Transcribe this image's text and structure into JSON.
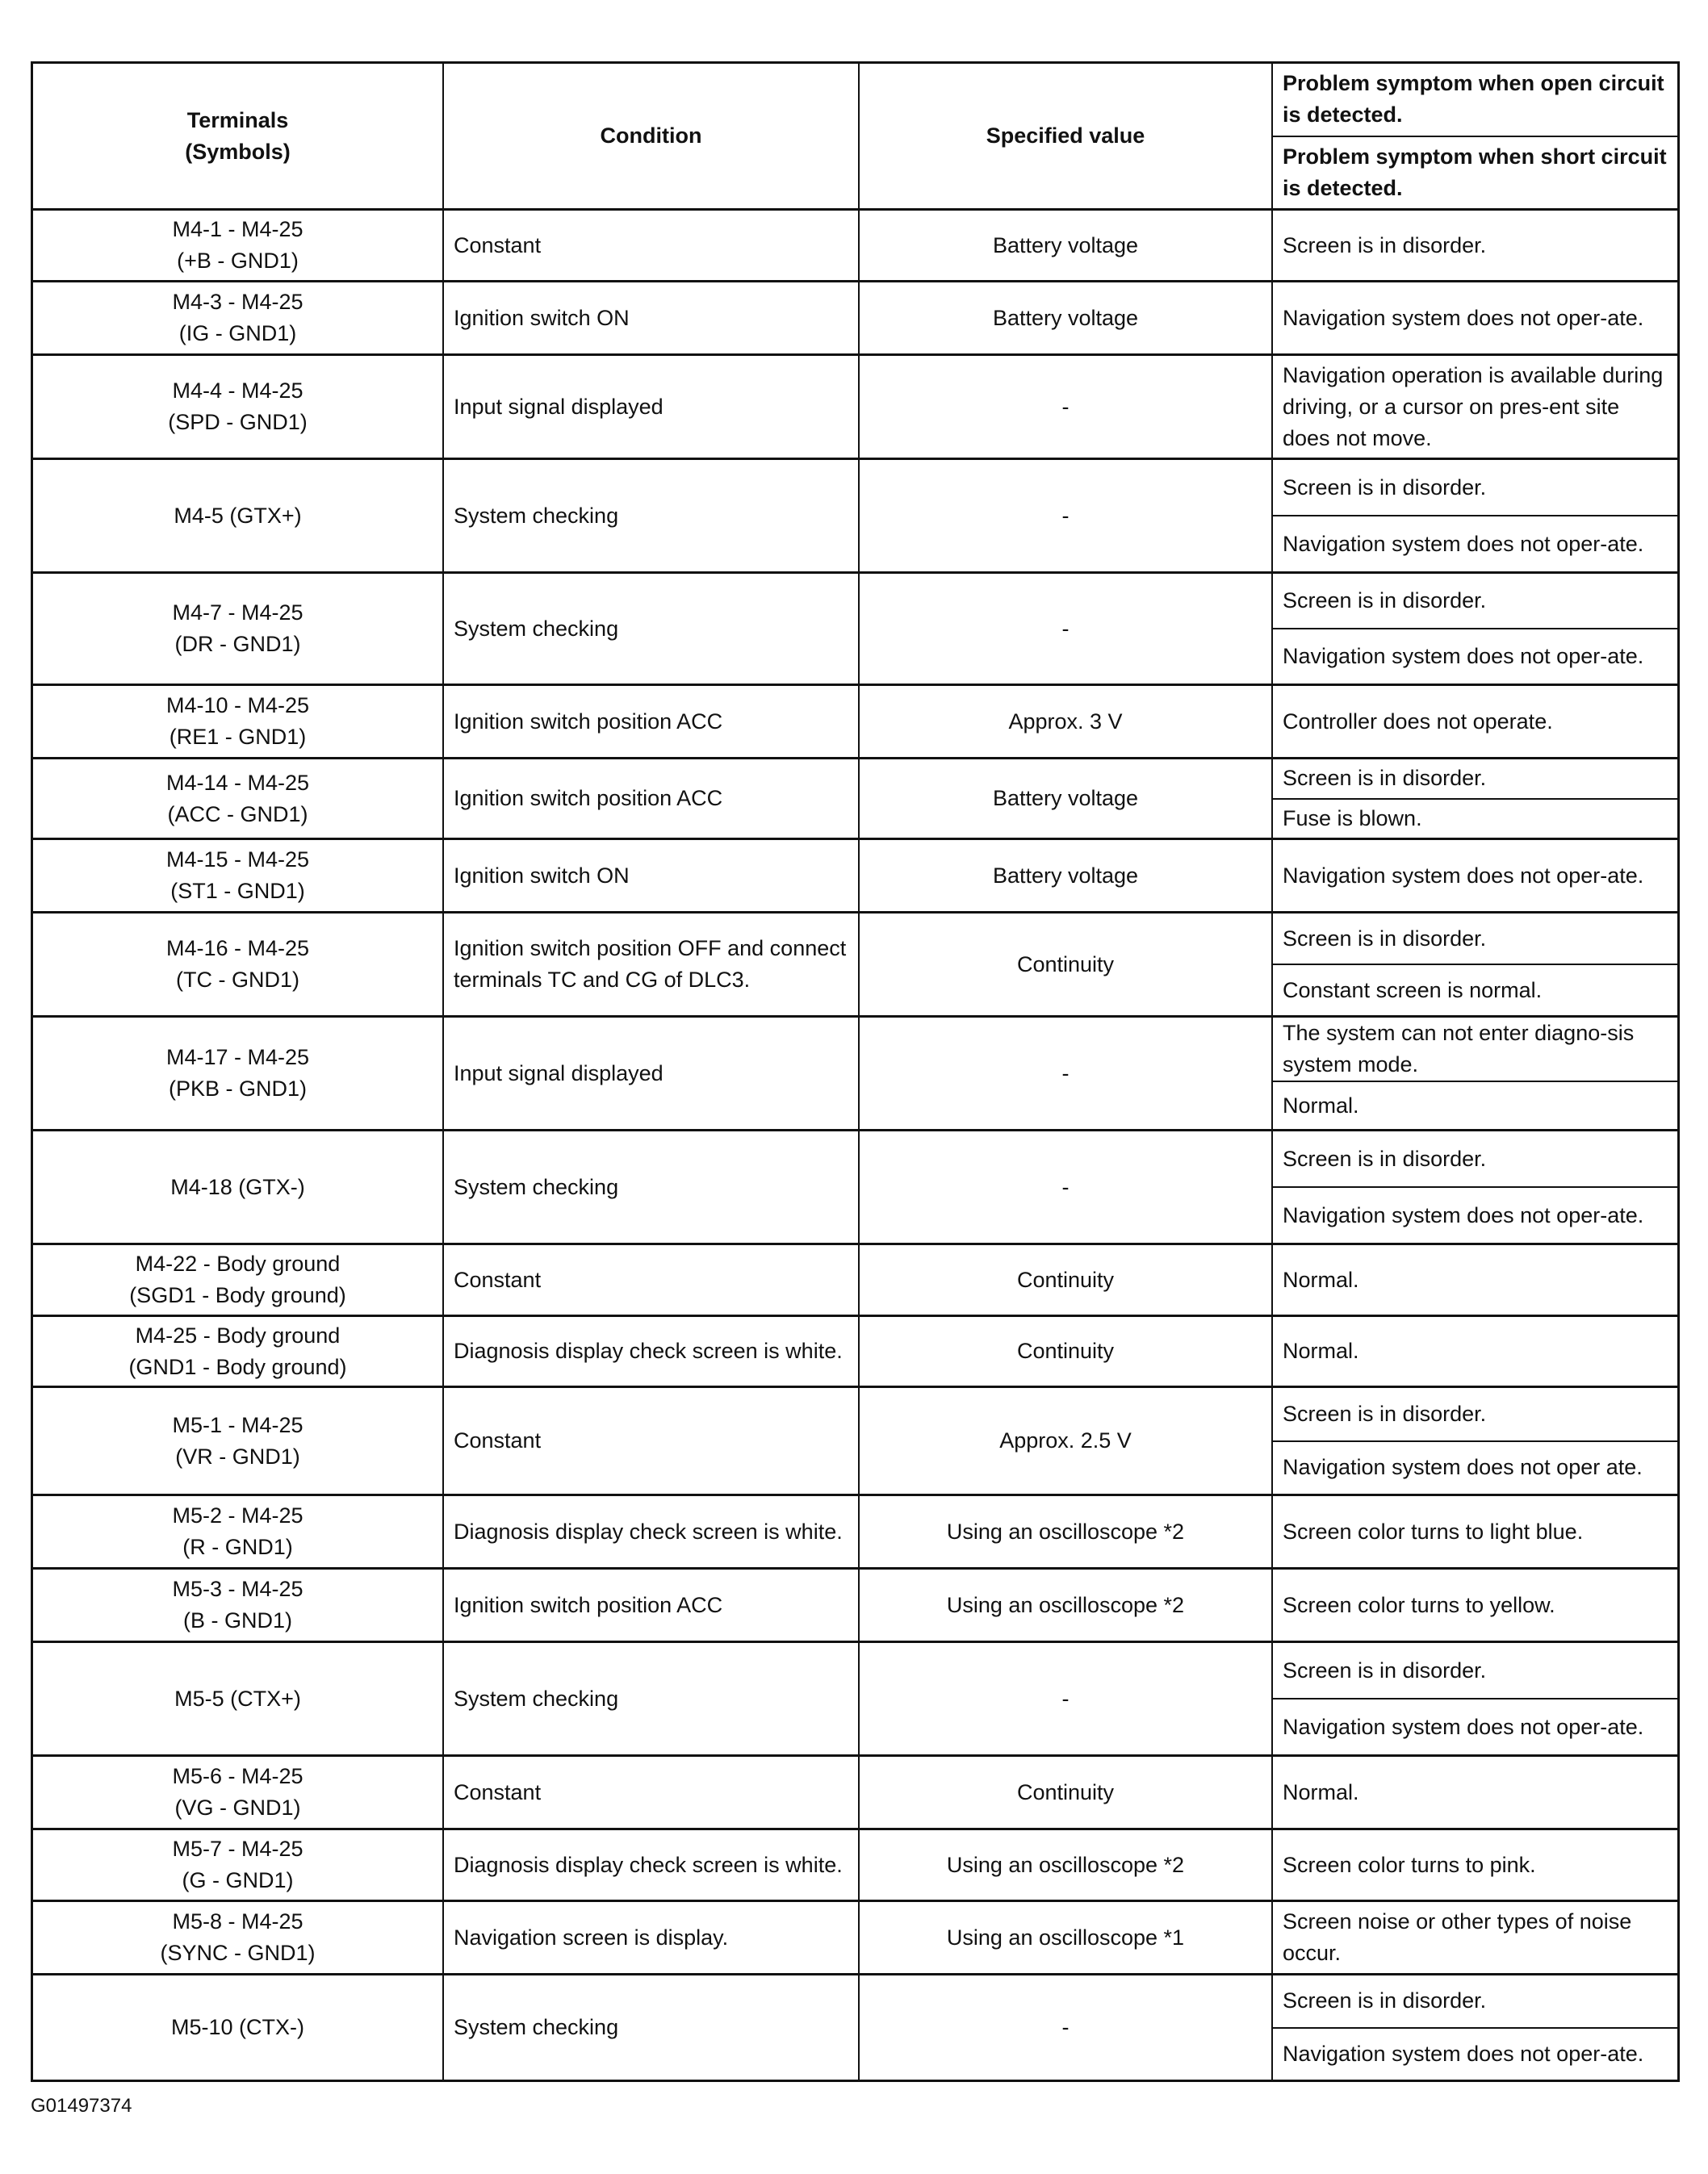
{
  "header": {
    "terminals": "Terminals\n(Symbols)",
    "condition": "Condition",
    "specified_value": "Specified value",
    "symptom_open": "Problem symptom when open circuit is detected.",
    "symptom_short": "Problem symptom when short circuit is detected."
  },
  "rows": [
    {
      "terminals": "M4-1 - M4-25\n(+B - GND1)",
      "condition": "Constant",
      "value": "Battery voltage",
      "symptoms": [
        "Screen is in disorder."
      ]
    },
    {
      "terminals": "M4-3 - M4-25\n(IG - GND1)",
      "condition": "Ignition switch ON",
      "value": "Battery voltage",
      "symptoms": [
        "Navigation system does not oper-ate."
      ]
    },
    {
      "terminals": "M4-4 - M4-25\n(SPD - GND1)",
      "condition": "Input signal displayed",
      "value": "-",
      "symptoms": [
        "Navigation operation is available during driving, or a cursor on pres-ent site does not move."
      ]
    },
    {
      "terminals": "M4-5 (GTX+)",
      "condition": "System checking",
      "value": "-",
      "symptoms": [
        "Screen is in disorder.",
        "Navigation system does not oper-ate."
      ]
    },
    {
      "terminals": "M4-7 - M4-25\n(DR - GND1)",
      "condition": "System checking",
      "value": "-",
      "symptoms": [
        "Screen is in disorder.",
        "Navigation system does not oper-ate."
      ]
    },
    {
      "terminals": "M4-10 - M4-25\n(RE1 - GND1)",
      "condition": "Ignition switch position ACC",
      "value": "Approx. 3 V",
      "symptoms": [
        "Controller does not operate."
      ]
    },
    {
      "terminals": "M4-14 - M4-25\n(ACC - GND1)",
      "condition": "Ignition switch position ACC",
      "value": "Battery voltage",
      "symptoms": [
        "Screen is in disorder.",
        "Fuse is blown."
      ]
    },
    {
      "terminals": "M4-15 - M4-25\n(ST1 - GND1)",
      "condition": "Ignition switch ON",
      "value": "Battery voltage",
      "symptoms": [
        "Navigation system does not oper-ate."
      ]
    },
    {
      "terminals": "M4-16 - M4-25\n(TC - GND1)",
      "condition": "Ignition switch position OFF and connect terminals TC and CG of DLC3.",
      "value": "Continuity",
      "symptoms": [
        "Screen is in disorder.",
        "Constant screen is normal."
      ]
    },
    {
      "terminals": "M4-17 - M4-25\n(PKB - GND1)",
      "condition": "Input signal displayed",
      "value": "-",
      "symptoms": [
        "The system can not enter diagno-sis system mode.",
        "Normal."
      ]
    },
    {
      "terminals": "M4-18 (GTX-)",
      "condition": "System checking",
      "value": "-",
      "symptoms": [
        "Screen is in disorder.",
        "Navigation system does not oper-ate."
      ]
    },
    {
      "terminals": "M4-22 - Body ground\n(SGD1 - Body ground)",
      "condition": "Constant",
      "value": "Continuity",
      "symptoms": [
        "Normal."
      ]
    },
    {
      "terminals": "M4-25 - Body ground\n(GND1 - Body ground)",
      "condition": "Diagnosis display check screen is white.",
      "value": "Continuity",
      "symptoms": [
        "Normal."
      ]
    },
    {
      "terminals": "M5-1 - M4-25\n(VR - GND1)",
      "condition": "Constant",
      "value": "Approx. 2.5 V",
      "symptoms": [
        "Screen is in disorder.",
        "Navigation system does not oper ate."
      ]
    },
    {
      "terminals": "M5-2 - M4-25\n(R - GND1)",
      "condition": "Diagnosis display check screen is white.",
      "value": "Using an oscilloscope *2",
      "symptoms": [
        "Screen color turns to light blue."
      ]
    },
    {
      "terminals": "M5-3 - M4-25\n(B - GND1)",
      "condition": "Ignition switch position ACC",
      "value": "Using an oscilloscope *2",
      "symptoms": [
        "Screen color turns to yellow."
      ]
    },
    {
      "terminals": "M5-5 (CTX+)",
      "condition": "System checking",
      "value": "-",
      "symptoms": [
        "Screen is in disorder.",
        "Navigation system does not oper-ate."
      ]
    },
    {
      "terminals": "M5-6 - M4-25\n(VG - GND1)",
      "condition": "Constant",
      "value": "Continuity",
      "symptoms": [
        "Normal."
      ]
    },
    {
      "terminals": "M5-7 - M4-25\n(G - GND1)",
      "condition": "Diagnosis display check screen is white.",
      "value": "Using an oscilloscope *2",
      "symptoms": [
        "Screen color turns to pink."
      ]
    },
    {
      "terminals": "M5-8 - M4-25\n(SYNC - GND1)",
      "condition": "Navigation screen is display.",
      "value": "Using an oscilloscope *1",
      "symptoms": [
        "Screen noise or other types of noise occur."
      ]
    },
    {
      "terminals": "M5-10 (CTX-)",
      "condition": "System checking",
      "value": "-",
      "symptoms": [
        "Screen is in disorder.",
        "Navigation system does not oper-ate."
      ]
    }
  ],
  "footer": {
    "figure_id": "G01497374"
  }
}
